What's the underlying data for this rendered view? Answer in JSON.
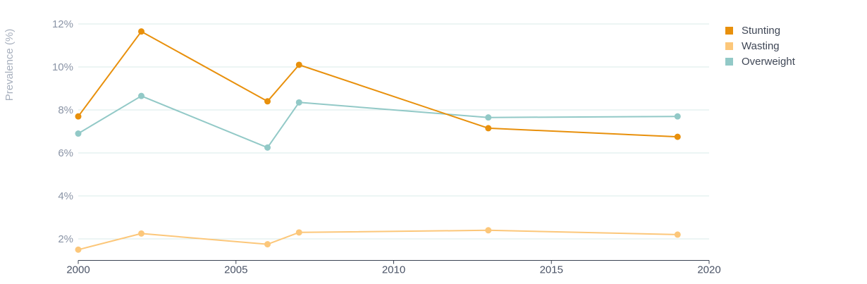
{
  "chart_data": {
    "type": "line",
    "ylabel": "Prevalence (%)",
    "xlim": [
      2000,
      2020
    ],
    "ylim": [
      1,
      12
    ],
    "x_ticks": [
      2000,
      2005,
      2010,
      2015,
      2020
    ],
    "y_ticks": [
      2,
      4,
      6,
      8,
      10,
      12
    ],
    "y_tick_labels": [
      "2%",
      "4%",
      "6%",
      "8%",
      "10%",
      "12%"
    ],
    "x_tick_labels": [
      "2000",
      "2005",
      "2010",
      "2015",
      "2020"
    ],
    "grid": "horizontal",
    "legend_position": "top-right",
    "series": [
      {
        "name": "Stunting",
        "color": "#e8900c",
        "points": [
          [
            2000,
            7.7
          ],
          [
            2002,
            11.65
          ],
          [
            2006,
            8.4
          ],
          [
            2007,
            10.1
          ],
          [
            2013,
            7.15
          ],
          [
            2019,
            6.75
          ]
        ]
      },
      {
        "name": "Wasting",
        "color": "#fcc77a",
        "points": [
          [
            2000,
            1.5
          ],
          [
            2002,
            2.25
          ],
          [
            2006,
            1.75
          ],
          [
            2007,
            2.3
          ],
          [
            2013,
            2.4
          ],
          [
            2019,
            2.2
          ]
        ]
      },
      {
        "name": "Overweight",
        "color": "#92c9c7",
        "points": [
          [
            2000,
            6.9
          ],
          [
            2002,
            8.65
          ],
          [
            2006,
            6.25
          ],
          [
            2007,
            8.35
          ],
          [
            2013,
            7.65
          ],
          [
            2019,
            7.7
          ]
        ]
      }
    ]
  }
}
